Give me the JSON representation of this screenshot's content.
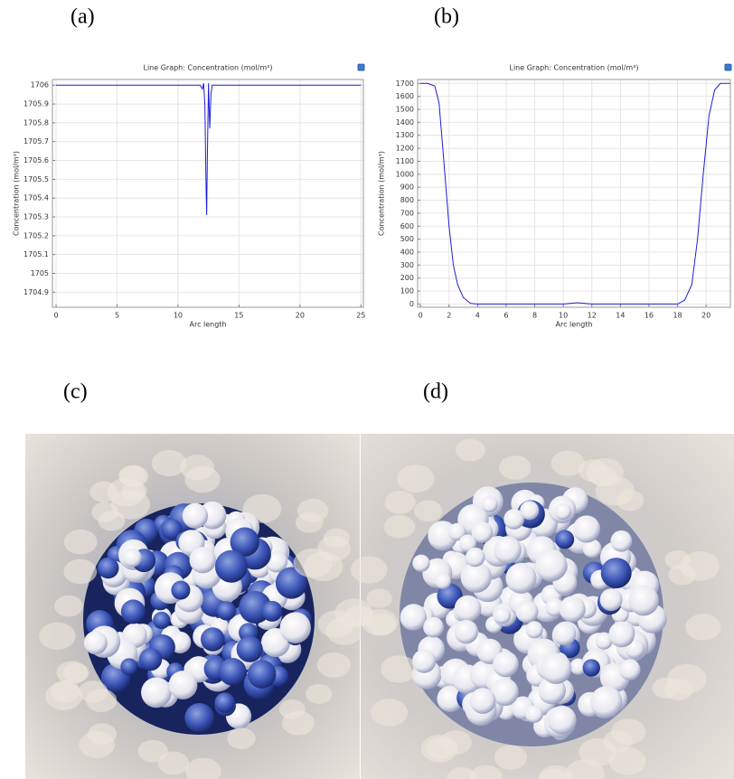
{
  "panel_labels": [
    "(a)",
    "(b)",
    "(c)",
    "(d)"
  ],
  "chart_data": [
    {
      "type": "line",
      "title": "Line Graph: Concentration (mol/m³)",
      "x_label": "Arc length",
      "y_label": "Concentration (mol/m³)",
      "x": [
        0,
        11.8,
        12.0,
        12.1,
        12.2,
        12.3,
        12.35,
        12.4,
        12.5,
        12.6,
        12.7,
        12.8,
        13.0,
        25
      ],
      "values": [
        1706,
        1706,
        1705.98,
        1706.01,
        1705.9,
        1705.45,
        1705.31,
        1705.6,
        1706.01,
        1705.77,
        1705.95,
        1706,
        1706,
        1706
      ],
      "color": "#1f1fd6",
      "grid": true,
      "xlim": [
        -0.3,
        25.2
      ],
      "xticks": [
        0,
        5,
        10,
        15,
        20,
        25
      ],
      "ylim": [
        1704.82,
        1706.03
      ],
      "yticks": [
        1704.9,
        1705,
        1705.1,
        1705.2,
        1705.3,
        1705.4,
        1705.5,
        1705.6,
        1705.7,
        1705.8,
        1705.9,
        1706
      ]
    },
    {
      "type": "line",
      "title": "Line Graph: Concentration (mol/m³)",
      "x_label": "Arc length",
      "y_label": "Concentration (mol/m³)",
      "x": [
        0,
        0.5,
        1,
        1.3,
        1.6,
        2,
        2.3,
        2.6,
        3,
        3.5,
        4,
        10,
        11,
        12,
        18,
        18.5,
        19,
        19.4,
        19.8,
        20.2,
        20.6,
        21,
        21.7
      ],
      "values": [
        1700,
        1700,
        1680,
        1550,
        1150,
        600,
        300,
        150,
        50,
        5,
        0,
        0,
        10,
        0,
        0,
        30,
        150,
        500,
        1000,
        1450,
        1650,
        1700,
        1700
      ],
      "color": "#1f1fd6",
      "grid": true,
      "xlim": [
        -0.2,
        21.7
      ],
      "xticks": [
        0,
        2,
        4,
        6,
        8,
        10,
        12,
        14,
        16,
        18,
        20
      ],
      "ylim": [
        -25,
        1730
      ],
      "yticks": [
        0,
        100,
        200,
        300,
        400,
        500,
        600,
        700,
        800,
        900,
        1000,
        1100,
        1200,
        1300,
        1400,
        1500,
        1600,
        1700
      ]
    }
  ]
}
